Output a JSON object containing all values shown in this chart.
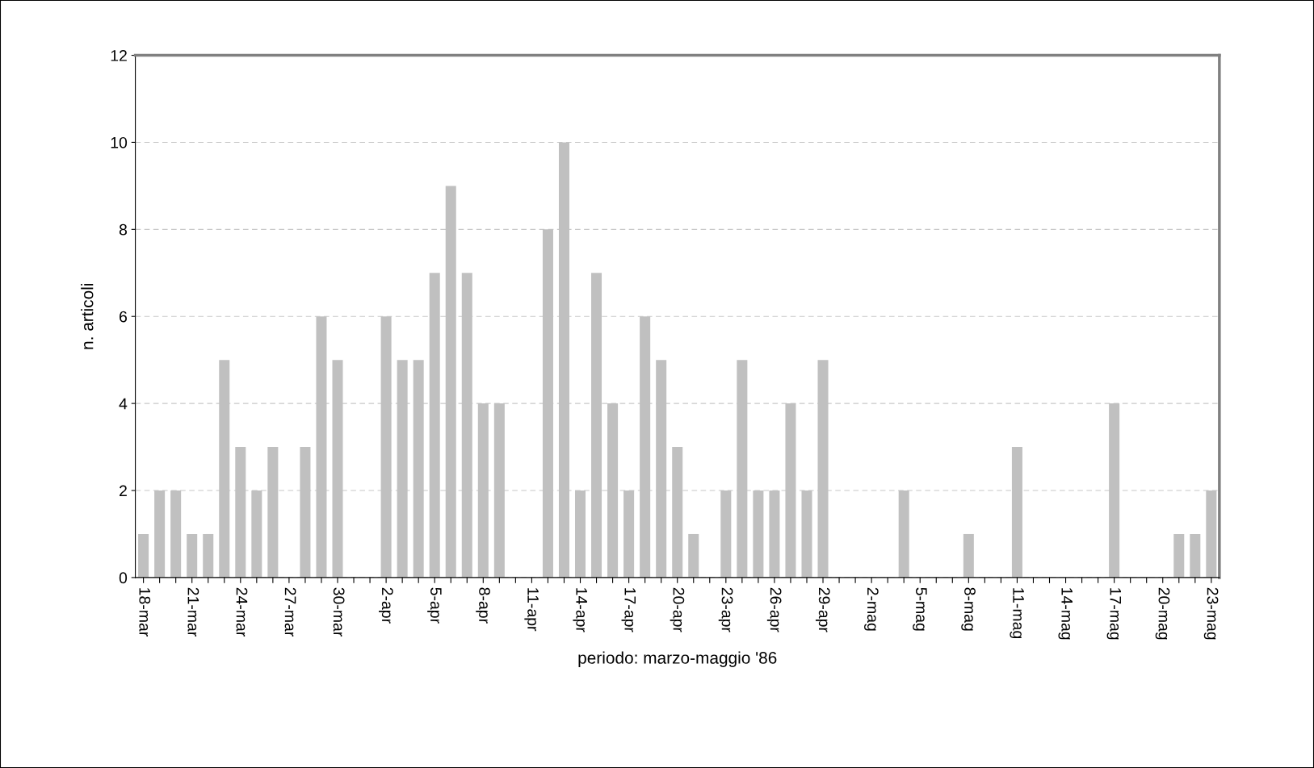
{
  "chart_data": {
    "type": "bar",
    "xlabel": "periodo: marzo-maggio '86",
    "ylabel": "n. articoli",
    "categories": [
      "18-mar",
      null,
      null,
      "21-mar",
      null,
      null,
      "24-mar",
      null,
      null,
      "27-mar",
      null,
      null,
      "30-mar",
      null,
      null,
      "2-apr",
      null,
      null,
      "5-apr",
      null,
      null,
      "8-apr",
      null,
      null,
      "11-apr",
      null,
      null,
      "14-apr",
      null,
      null,
      "17-apr",
      null,
      null,
      "20-apr",
      null,
      null,
      "23-apr",
      null,
      null,
      "26-apr",
      null,
      null,
      "29-apr",
      null,
      null,
      "2-mag",
      null,
      null,
      "5-mag",
      null,
      null,
      "8-mag",
      null,
      null,
      "11-mag",
      null,
      null,
      "14-mag",
      null,
      null,
      "17-mag",
      null,
      null,
      "20-mag",
      null,
      null,
      "23-mag"
    ],
    "values": [
      1,
      2,
      2,
      1,
      1,
      5,
      3,
      2,
      3,
      0,
      3,
      6,
      5,
      0,
      0,
      6,
      5,
      5,
      7,
      9,
      7,
      4,
      4,
      0,
      0,
      8,
      10,
      2,
      7,
      4,
      2,
      6,
      5,
      3,
      1,
      0,
      2,
      5,
      2,
      2,
      4,
      2,
      5,
      0,
      0,
      0,
      0,
      2,
      0,
      0,
      0,
      1,
      0,
      0,
      3,
      0,
      0,
      0,
      0,
      0,
      4,
      0,
      0,
      0,
      1,
      1,
      2
    ],
    "color": "#c0c0c0",
    "ylim": [
      0,
      12
    ],
    "yticks": [
      0,
      2,
      4,
      6,
      8,
      10,
      12
    ],
    "grid": "y"
  }
}
